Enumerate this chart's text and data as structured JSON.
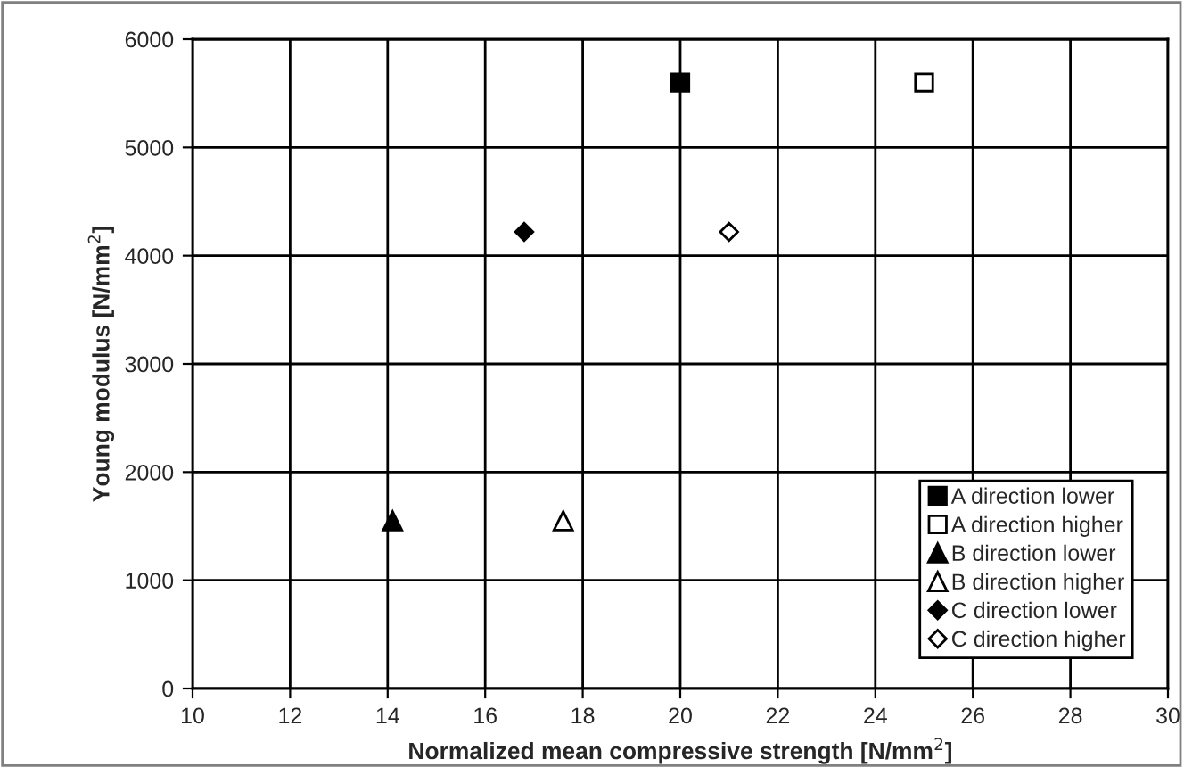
{
  "chart_data": {
    "type": "scatter",
    "xlabel": "Normalized mean compressive strength [N/mm$^{2}$]",
    "ylabel": "Young modulus [N/mm$^{2}$]",
    "xlim": [
      10,
      30
    ],
    "xticks": [
      10,
      12,
      14,
      16,
      18,
      20,
      22,
      24,
      26,
      28,
      30
    ],
    "ylim": [
      0,
      6000
    ],
    "yticks": [
      0,
      1000,
      2000,
      3000,
      4000,
      5000,
      6000
    ],
    "grid": true,
    "legend": "bottom right",
    "series": [
      {
        "name": "A direction lower",
        "color": "#000000",
        "marker": "square",
        "x": [
          20.0
        ],
        "values": [
          5600
        ]
      },
      {
        "name": "A direction higher",
        "color": "#ffffff",
        "marker": "square",
        "x": [
          25.0
        ],
        "values": [
          5600
        ]
      },
      {
        "name": "B direction lower",
        "color": "#000000",
        "marker": "triangle",
        "x": [
          14.1
        ],
        "values": [
          1550
        ]
      },
      {
        "name": "B direction higher",
        "color": "#ffffff",
        "marker": "triangle",
        "x": [
          17.6
        ],
        "values": [
          1550
        ]
      },
      {
        "name": "C direction lower",
        "color": "#000000",
        "marker": "diamond",
        "x": [
          16.8
        ],
        "values": [
          4220
        ]
      },
      {
        "name": "C direction higher",
        "color": "#ffffff",
        "marker": "diamond",
        "x": [
          21.0
        ],
        "values": [
          4220
        ]
      }
    ]
  }
}
